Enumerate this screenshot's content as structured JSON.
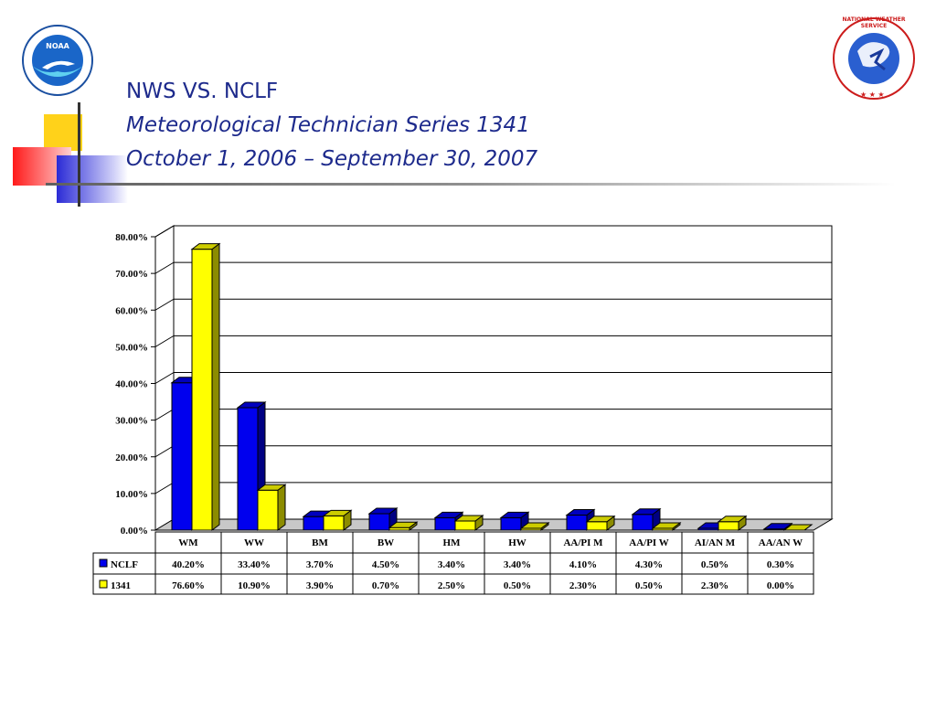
{
  "title": {
    "line1": "NWS VS. NCLF",
    "line2": "Meteorological Technician Series 1341",
    "line3": "October 1, 2006 – September 30, 2007"
  },
  "logos": {
    "left": "NOAA",
    "right": "NATIONAL WEATHER SERVICE"
  },
  "colors": {
    "title": "#1d2a8c",
    "nclf": "#0000ee",
    "s1341": "#ffff00"
  },
  "chart_data": {
    "type": "bar",
    "categories": [
      "WM",
      "WW",
      "BM",
      "BW",
      "HM",
      "HW",
      "AA/PI M",
      "AA/PI W",
      "AI/AN M",
      "AA/AN W"
    ],
    "series": [
      {
        "name": "NCLF",
        "values": [
          40.2,
          33.4,
          3.7,
          4.5,
          3.4,
          3.4,
          4.1,
          4.3,
          0.5,
          0.3
        ],
        "labels": [
          "40.20%",
          "33.40%",
          "3.70%",
          "4.50%",
          "3.40%",
          "3.40%",
          "4.10%",
          "4.30%",
          "0.50%",
          "0.30%"
        ]
      },
      {
        "name": "1341",
        "values": [
          76.6,
          10.9,
          3.9,
          0.7,
          2.5,
          0.5,
          2.3,
          0.5,
          2.3,
          0.0
        ],
        "labels": [
          "76.60%",
          "10.90%",
          "3.90%",
          "0.70%",
          "2.50%",
          "0.50%",
          "2.30%",
          "0.50%",
          "2.30%",
          "0.00%"
        ]
      }
    ],
    "yticks": [
      "0.00%",
      "10.00%",
      "20.00%",
      "30.00%",
      "40.00%",
      "50.00%",
      "60.00%",
      "70.00%",
      "80.00%"
    ],
    "ylim": [
      0,
      80
    ],
    "grid": true,
    "legend": "data-table",
    "title": "",
    "xlabel": "",
    "ylabel": ""
  }
}
